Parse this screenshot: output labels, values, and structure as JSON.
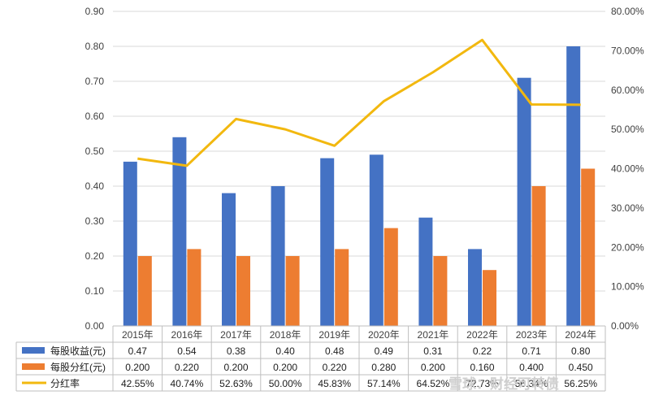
{
  "chart_data": {
    "type": "bar",
    "categories": [
      "2015年",
      "2016年",
      "2017年",
      "2018年",
      "2019年",
      "2020年",
      "2021年",
      "2022年",
      "2023年",
      "2024年"
    ],
    "series": [
      {
        "name": "每股收益(元)",
        "kind": "bar",
        "axis": "left",
        "color": "#4472C4",
        "values": [
          0.47,
          0.54,
          0.38,
          0.4,
          0.48,
          0.49,
          0.31,
          0.22,
          0.71,
          0.8
        ],
        "table_labels": [
          "0.47",
          "0.54",
          "0.38",
          "0.40",
          "0.48",
          "0.49",
          "0.31",
          "0.22",
          "0.71",
          "0.80"
        ]
      },
      {
        "name": "每股分红(元)",
        "kind": "bar",
        "axis": "left",
        "color": "#ED7D31",
        "values": [
          0.2,
          0.22,
          0.2,
          0.2,
          0.22,
          0.28,
          0.2,
          0.16,
          0.4,
          0.45
        ],
        "table_labels": [
          "0.200",
          "0.220",
          "0.200",
          "0.200",
          "0.220",
          "0.280",
          "0.200",
          "0.160",
          "0.400",
          "0.450"
        ]
      },
      {
        "name": "分红率",
        "kind": "line",
        "axis": "right",
        "color": "#F2B80F",
        "values": [
          42.55,
          40.74,
          52.63,
          50.0,
          45.83,
          57.14,
          64.52,
          72.73,
          56.34,
          56.25
        ],
        "table_labels": [
          "42.55%",
          "40.74%",
          "52.63%",
          "50.00%",
          "45.83%",
          "57.14%",
          "64.52%",
          "72.73%",
          "56.34%",
          "56.25%"
        ]
      }
    ],
    "y_left": {
      "min": 0,
      "max": 0.9,
      "step": 0.1,
      "ticks": [
        "0.00",
        "0.10",
        "0.20",
        "0.30",
        "0.40",
        "0.50",
        "0.60",
        "0.70",
        "0.80",
        "0.90"
      ]
    },
    "y_right": {
      "min": 0,
      "max": 80,
      "step": 10,
      "ticks": [
        "0.00%",
        "10.00%",
        "20.00%",
        "30.00%",
        "40.00%",
        "50.00%",
        "60.00%",
        "70.00%",
        "80.00%"
      ]
    },
    "grid": true,
    "legend": "data-table-bottom"
  },
  "watermark": "雪球：财经可转债"
}
